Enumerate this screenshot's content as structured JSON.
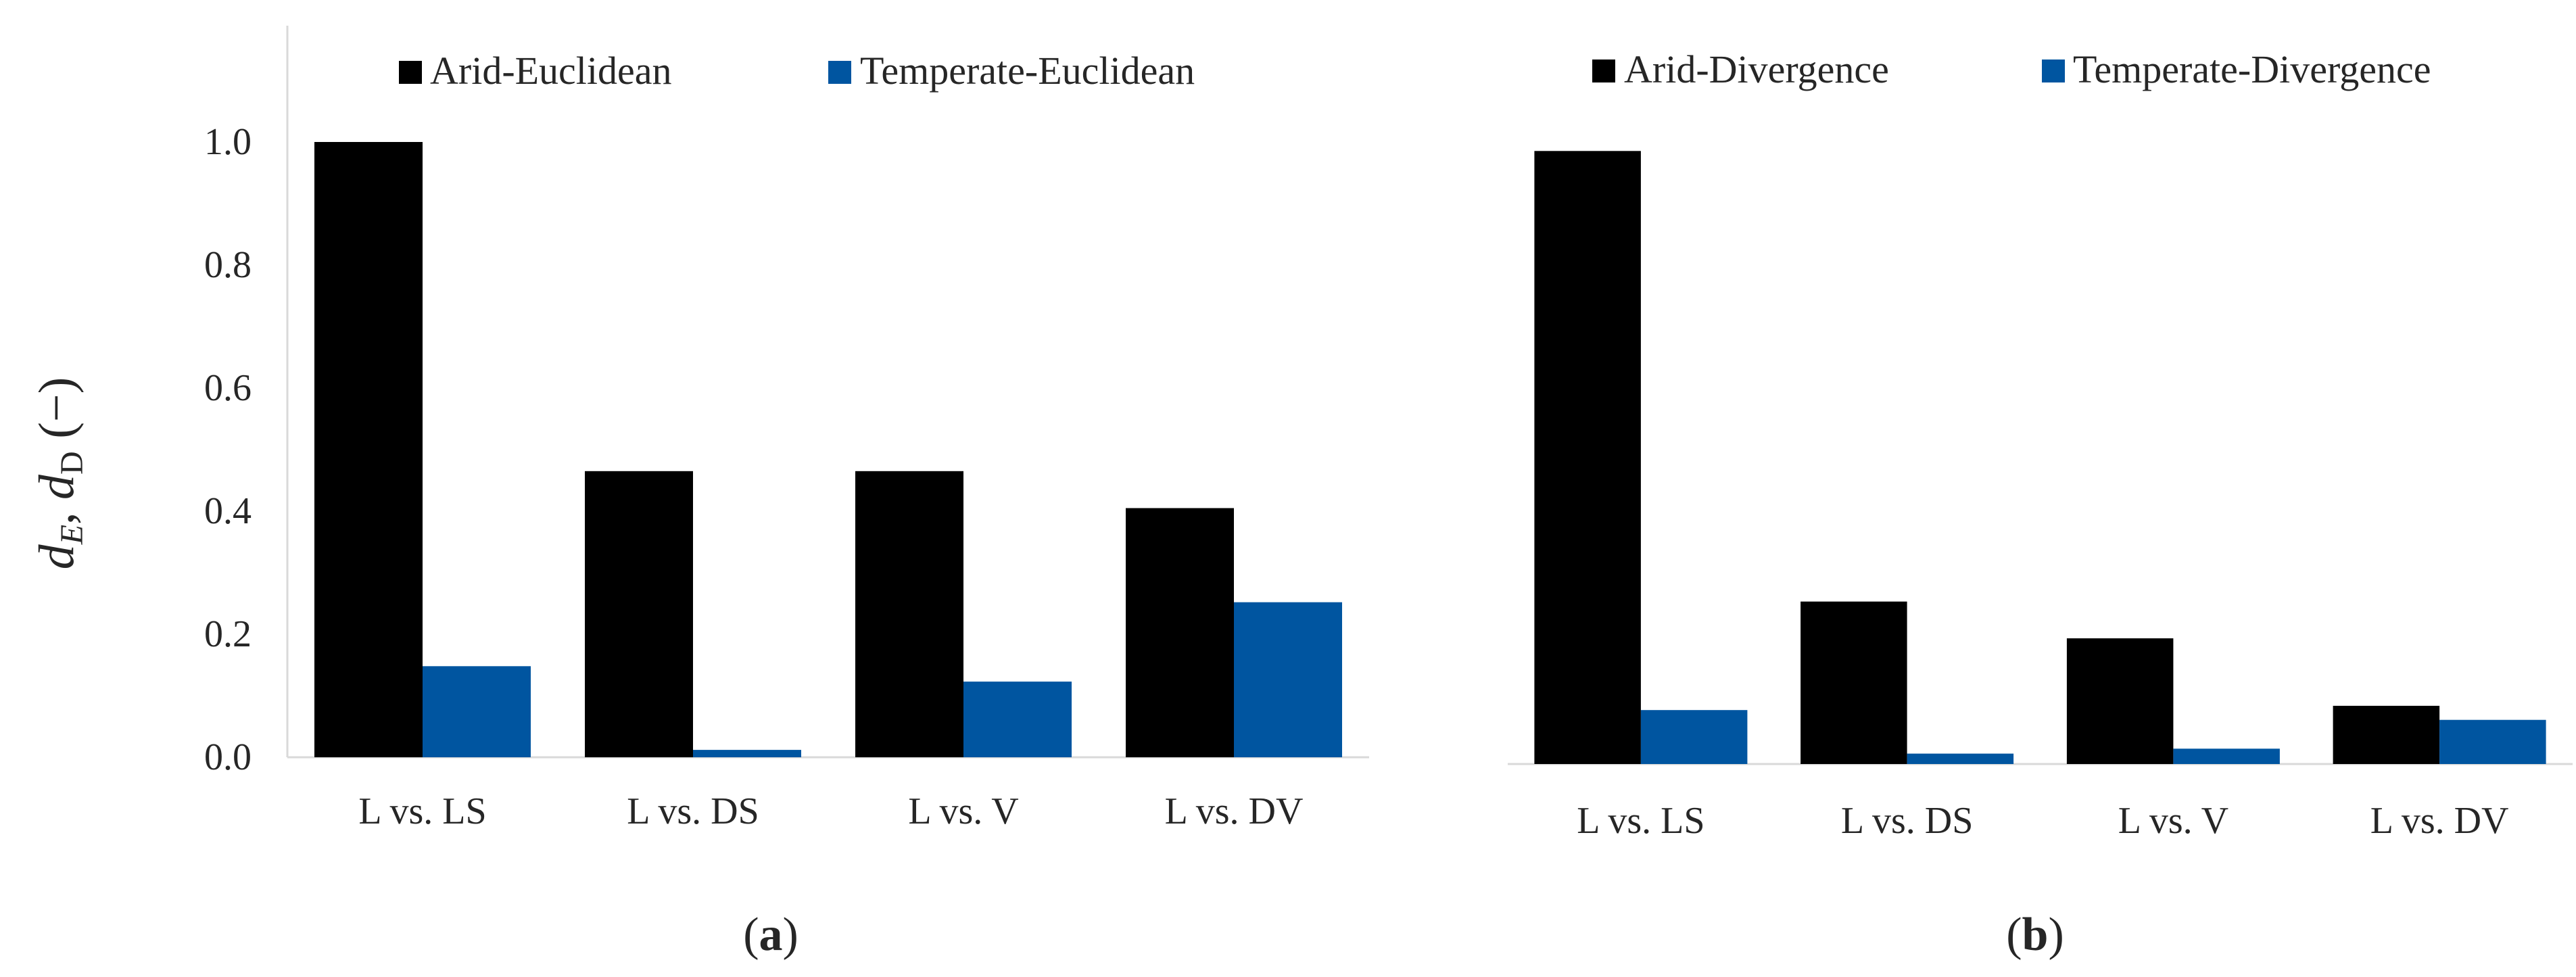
{
  "chart_data": [
    {
      "type": "bar",
      "panel_label": "a",
      "categories": [
        "L vs. LS",
        "L vs. DS",
        "L vs. V",
        "L vs. DV"
      ],
      "series": [
        {
          "name": "Arid-Euclidean",
          "color": "#000000",
          "values": [
            1.0,
            0.465,
            0.465,
            0.405
          ]
        },
        {
          "name": "Temperate-Euclidean",
          "color": "#0055A0",
          "values": [
            0.148,
            0.012,
            0.123,
            0.252
          ]
        }
      ],
      "ylim": [
        0,
        1.2
      ],
      "yticks": [
        "0.0",
        "0.2",
        "0.4",
        "0.6",
        "0.8",
        "1.0"
      ],
      "ylabel": {
        "d1": "d",
        "sub1": "E",
        "sep": ", ",
        "d2": "d",
        "sub2": "D",
        "unit": " (−)"
      },
      "legend": "top"
    },
    {
      "type": "bar",
      "panel_label": "b",
      "categories": [
        "L vs. LS",
        "L vs. DS",
        "L vs. V",
        "L vs. DV"
      ],
      "series": [
        {
          "name": "Arid-Divergence",
          "color": "#000000",
          "values": [
            1.0,
            0.265,
            0.205,
            0.095
          ]
        },
        {
          "name": "Temperate-Divergence",
          "color": "#0055A0",
          "values": [
            0.088,
            0.017,
            0.025,
            0.072
          ]
        }
      ],
      "ylim": [
        0,
        1.2
      ],
      "legend": "top"
    }
  ]
}
